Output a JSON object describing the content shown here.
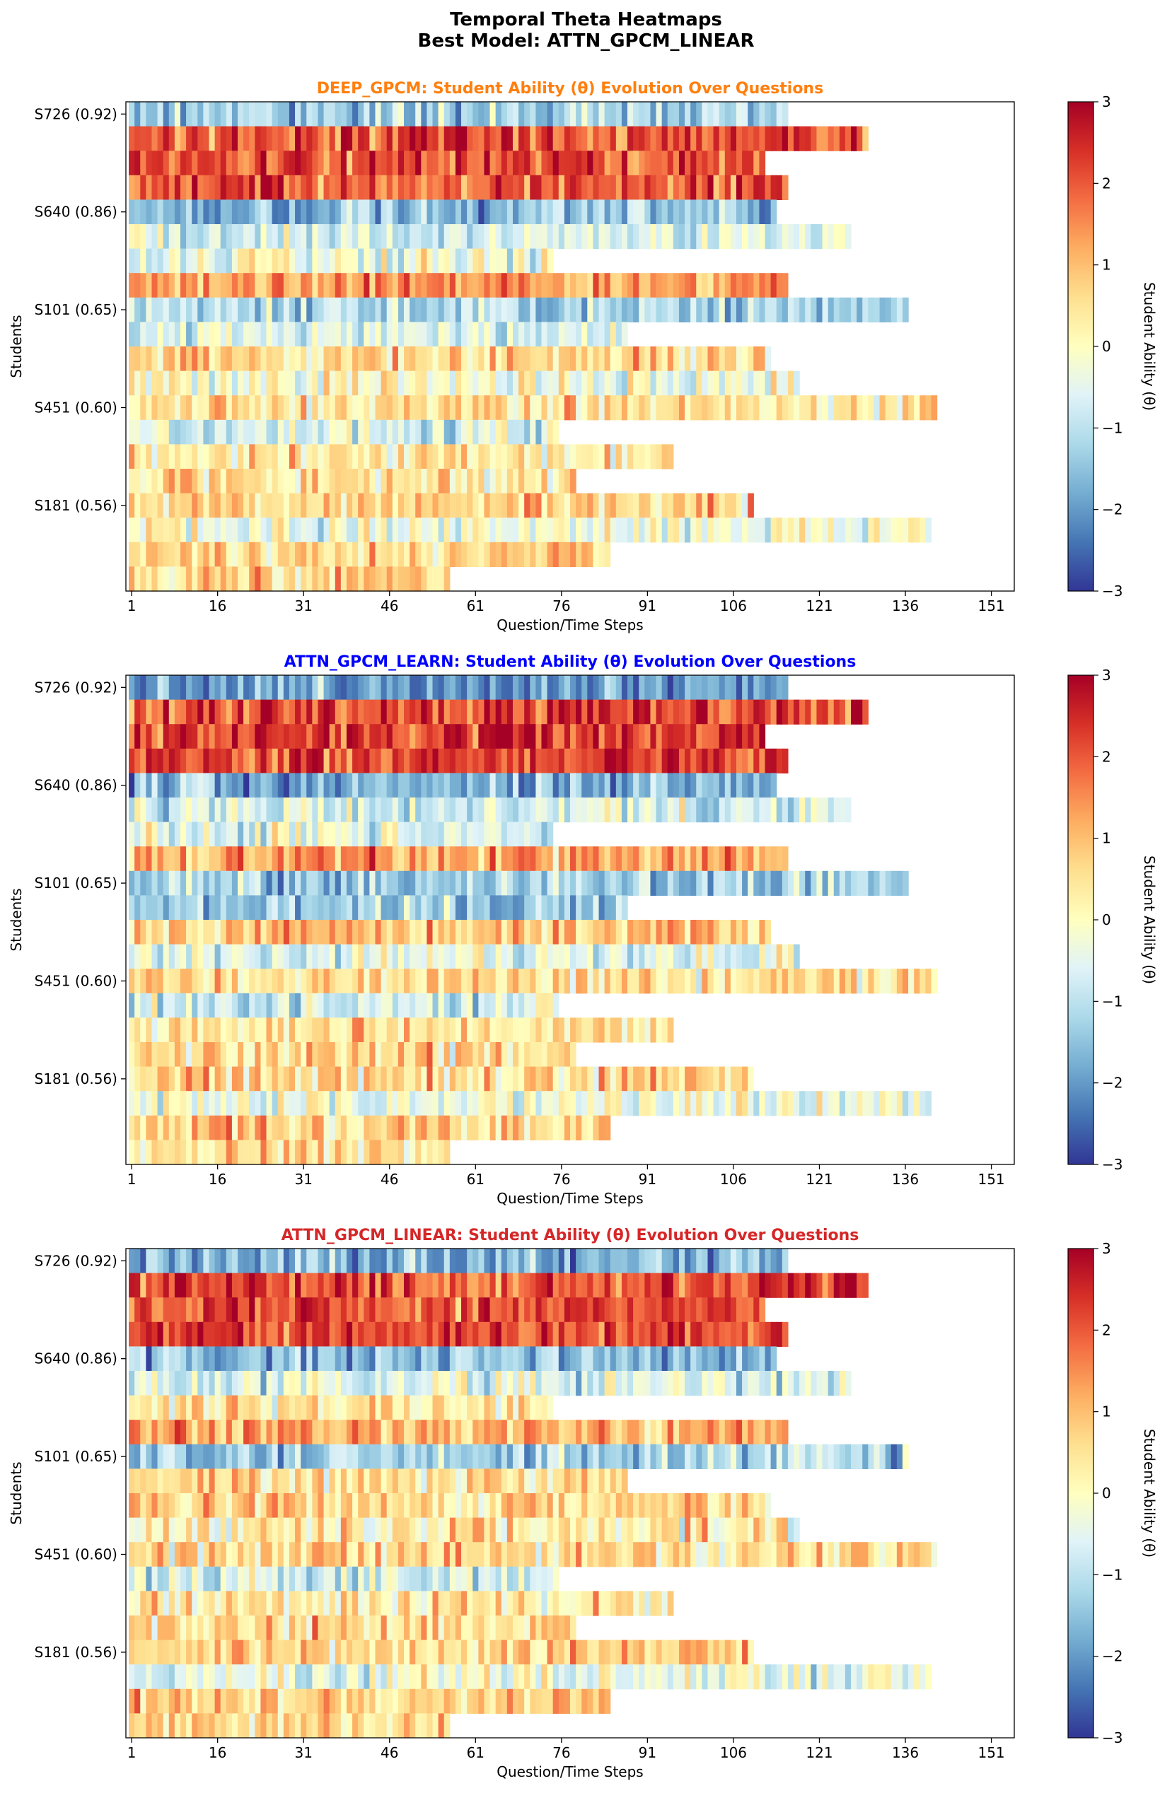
{
  "figure": {
    "title_line1": "Temporal Theta Heatmaps",
    "title_line2": "Best Model: ATTN_GPCM_LINEAR"
  },
  "chart_data": [
    {
      "type": "heatmap",
      "model": "DEEP_GPCM",
      "title": "DEEP_GPCM: Student Ability (θ) Evolution Over Questions",
      "title_color": "#ff7f0e",
      "xlabel": "Question/Time Steps",
      "ylabel": "Students",
      "xticks": [
        1,
        16,
        31,
        46,
        61,
        76,
        91,
        106,
        121,
        136,
        151
      ],
      "xlim": [
        0,
        155
      ],
      "ytick_labels": [
        "S726 (0.92)",
        "S640 (0.86)",
        "S101 (0.65)",
        "S451 (0.60)",
        "S181 (0.56)"
      ],
      "ytick_rows": [
        0,
        4,
        8,
        12,
        16
      ],
      "n_students": 20,
      "sequence_lengths": [
        115,
        129,
        111,
        115,
        113,
        126,
        74,
        115,
        136,
        87,
        112,
        117,
        141,
        75,
        95,
        78,
        109,
        140,
        84,
        56
      ],
      "row_mean_theta": [
        -1.3,
        2.1,
        2.0,
        2.0,
        -1.5,
        -0.6,
        -0.3,
        1.4,
        -1.2,
        -0.8,
        0.6,
        -0.2,
        0.4,
        -0.6,
        0.4,
        0.5,
        0.7,
        -0.2,
        0.8,
        0.7
      ],
      "colorbar": {
        "label": "Student Ability (θ)",
        "ticks": [
          -3,
          -2,
          -1,
          0,
          1,
          2,
          3
        ],
        "vmin": -3,
        "vmax": 3,
        "cmap": "RdYlBu_r"
      }
    },
    {
      "type": "heatmap",
      "model": "ATTN_GPCM_LEARN",
      "title": "ATTN_GPCM_LEARN: Student Ability (θ) Evolution Over Questions",
      "title_color": "#0000ff",
      "xlabel": "Question/Time Steps",
      "ylabel": "Students",
      "xticks": [
        1,
        16,
        31,
        46,
        61,
        76,
        91,
        106,
        121,
        136,
        151
      ],
      "xlim": [
        0,
        155
      ],
      "ytick_labels": [
        "S726 (0.92)",
        "S640 (0.86)",
        "S101 (0.65)",
        "S451 (0.60)",
        "S181 (0.56)"
      ],
      "ytick_rows": [
        0,
        4,
        8,
        12,
        16
      ],
      "n_students": 20,
      "sequence_lengths": [
        115,
        129,
        111,
        115,
        113,
        126,
        74,
        115,
        136,
        87,
        112,
        117,
        141,
        75,
        95,
        78,
        109,
        140,
        84,
        56
      ],
      "row_mean_theta": [
        -1.8,
        2.2,
        2.2,
        2.3,
        -1.7,
        -0.7,
        -0.5,
        1.3,
        -1.3,
        -1.4,
        1.0,
        -0.5,
        0.5,
        -0.8,
        0.4,
        0.6,
        0.7,
        -0.3,
        0.8,
        0.7
      ],
      "colorbar": {
        "label": "Student Ability (θ)",
        "ticks": [
          -3,
          -2,
          -1,
          0,
          1,
          2,
          3
        ],
        "vmin": -3,
        "vmax": 3,
        "cmap": "RdYlBu_r"
      }
    },
    {
      "type": "heatmap",
      "model": "ATTN_GPCM_LINEAR",
      "title": "ATTN_GPCM_LINEAR: Student Ability (θ) Evolution Over Questions",
      "title_color": "#d62728",
      "xlabel": "Question/Time Steps",
      "ylabel": "Students",
      "xticks": [
        1,
        16,
        31,
        46,
        61,
        76,
        91,
        106,
        121,
        136,
        151
      ],
      "xlim": [
        0,
        155
      ],
      "ytick_labels": [
        "S726 (0.92)",
        "S640 (0.86)",
        "S101 (0.65)",
        "S451 (0.60)",
        "S181 (0.56)"
      ],
      "ytick_rows": [
        0,
        4,
        8,
        12,
        16
      ],
      "n_students": 20,
      "sequence_lengths": [
        115,
        129,
        111,
        115,
        113,
        126,
        74,
        115,
        136,
        87,
        112,
        117,
        141,
        75,
        95,
        78,
        109,
        140,
        84,
        56
      ],
      "row_mean_theta": [
        -1.7,
        2.2,
        2.1,
        2.2,
        -1.5,
        -0.6,
        0.3,
        1.2,
        -1.2,
        0.6,
        0.6,
        0.3,
        0.5,
        -0.8,
        0.4,
        0.6,
        0.8,
        -0.3,
        0.8,
        0.7
      ],
      "colorbar": {
        "label": "Student Ability (θ)",
        "ticks": [
          -3,
          -2,
          -1,
          0,
          1,
          2,
          3
        ],
        "vmin": -3,
        "vmax": 3,
        "cmap": "RdYlBu_r"
      }
    }
  ]
}
